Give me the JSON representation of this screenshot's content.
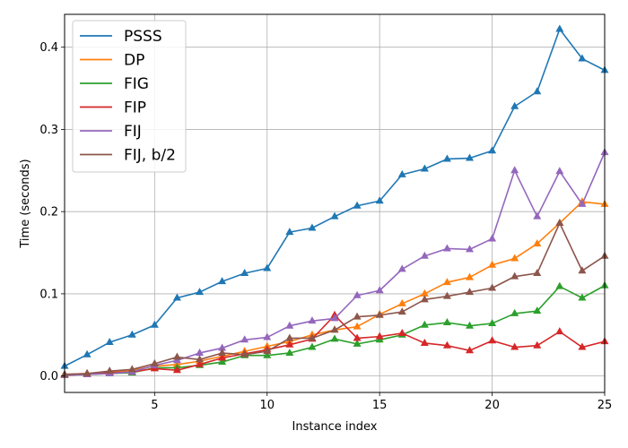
{
  "chart_data": {
    "type": "line",
    "title": "",
    "xlabel": "Instance index",
    "ylabel": "Time (seconds)",
    "xlim": [
      1,
      25
    ],
    "ylim": [
      -0.02,
      0.44
    ],
    "xticks": [
      5,
      10,
      15,
      20,
      25
    ],
    "yticks": [
      0.0,
      0.1,
      0.2,
      0.3,
      0.4
    ],
    "ytick_labels": [
      "0.0",
      "0.1",
      "0.2",
      "0.3",
      "0.4"
    ],
    "grid": true,
    "legend_position": "top-left",
    "marker": "triangle",
    "x": [
      1,
      2,
      3,
      4,
      5,
      6,
      7,
      8,
      9,
      10,
      11,
      12,
      13,
      14,
      15,
      16,
      17,
      18,
      19,
      20,
      21,
      22,
      23,
      24,
      25
    ],
    "series": [
      {
        "name": "PSSS",
        "color": "#1f77b4",
        "values": [
          0.012,
          0.026,
          0.041,
          0.05,
          0.062,
          0.095,
          0.102,
          0.115,
          0.125,
          0.131,
          0.175,
          0.18,
          0.194,
          0.207,
          0.213,
          0.245,
          0.252,
          0.264,
          0.265,
          0.274,
          0.328,
          0.346,
          0.422,
          0.386,
          0.372
        ]
      },
      {
        "name": "DP",
        "color": "#ff7f0e",
        "values": [
          0.002,
          0.003,
          0.005,
          0.007,
          0.012,
          0.014,
          0.018,
          0.024,
          0.03,
          0.036,
          0.042,
          0.05,
          0.056,
          0.06,
          0.075,
          0.088,
          0.1,
          0.114,
          0.12,
          0.135,
          0.143,
          0.161,
          0.186,
          0.212,
          0.209
        ]
      },
      {
        "name": "FIG",
        "color": "#2ca02c",
        "values": [
          0.001,
          0.002,
          0.003,
          0.004,
          0.01,
          0.01,
          0.013,
          0.017,
          0.025,
          0.025,
          0.028,
          0.035,
          0.045,
          0.039,
          0.044,
          0.05,
          0.062,
          0.065,
          0.061,
          0.064,
          0.076,
          0.079,
          0.109,
          0.095,
          0.11
        ]
      },
      {
        "name": "FIP",
        "color": "#d62728",
        "values": [
          0.001,
          0.002,
          0.004,
          0.005,
          0.009,
          0.007,
          0.014,
          0.022,
          0.027,
          0.032,
          0.038,
          0.045,
          0.074,
          0.046,
          0.048,
          0.052,
          0.04,
          0.037,
          0.031,
          0.043,
          0.035,
          0.037,
          0.054,
          0.035,
          0.042
        ]
      },
      {
        "name": "FIJ",
        "color": "#9467bd",
        "values": [
          0.001,
          0.002,
          0.003,
          0.005,
          0.013,
          0.019,
          0.028,
          0.034,
          0.044,
          0.047,
          0.061,
          0.067,
          0.07,
          0.098,
          0.104,
          0.13,
          0.146,
          0.155,
          0.154,
          0.167,
          0.25,
          0.194,
          0.249,
          0.209,
          0.272
        ]
      },
      {
        "name": "FIJ, b/2",
        "color": "#8c564b",
        "values": [
          0.002,
          0.003,
          0.006,
          0.008,
          0.015,
          0.023,
          0.02,
          0.028,
          0.026,
          0.03,
          0.046,
          0.046,
          0.056,
          0.072,
          0.074,
          0.078,
          0.093,
          0.097,
          0.102,
          0.107,
          0.121,
          0.125,
          0.186,
          0.128,
          0.146
        ]
      }
    ]
  }
}
